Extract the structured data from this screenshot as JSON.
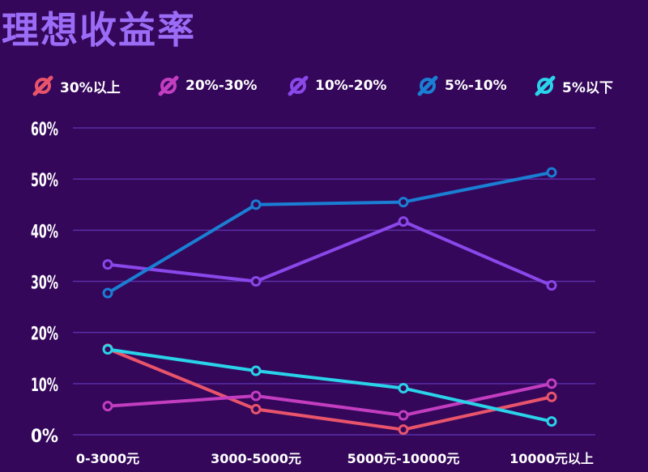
{
  "title": "理想收益率",
  "legend": [
    {
      "label": "30%以上",
      "color": "#e9546b"
    },
    {
      "label": "20%-30%",
      "color": "#c33dc0"
    },
    {
      "label": "10%-20%",
      "color": "#8a47ea"
    },
    {
      "label": "5%-10%",
      "color": "#1a7fd4"
    },
    {
      "label": "5%以下",
      "color": "#2ad3ea"
    }
  ],
  "chart_data": {
    "type": "line",
    "title": "理想收益率",
    "categories": [
      "0-3000元",
      "3000-5000元",
      "5000元-10000元",
      "10000元以上"
    ],
    "y_ticks": [
      "0%",
      "10%",
      "20%",
      "30%",
      "40%",
      "50%",
      "60%"
    ],
    "ylim": [
      0,
      60
    ],
    "grid": true,
    "legend_position": "top",
    "series": [
      {
        "name": "30%以上",
        "color": "#e9546b",
        "values": [
          16.8,
          5.0,
          1.0,
          7.4
        ]
      },
      {
        "name": "20%-30%",
        "color": "#c33dc0",
        "values": [
          5.6,
          7.6,
          3.8,
          10.0
        ]
      },
      {
        "name": "10%-20%",
        "color": "#8a47ea",
        "values": [
          33.3,
          30.0,
          41.7,
          29.2
        ]
      },
      {
        "name": "5%-10%",
        "color": "#1a7fd4",
        "values": [
          27.7,
          45.0,
          45.5,
          51.3
        ]
      },
      {
        "name": "5%以下",
        "color": "#2ad3ea",
        "values": [
          16.7,
          12.5,
          9.1,
          2.6
        ]
      }
    ]
  }
}
